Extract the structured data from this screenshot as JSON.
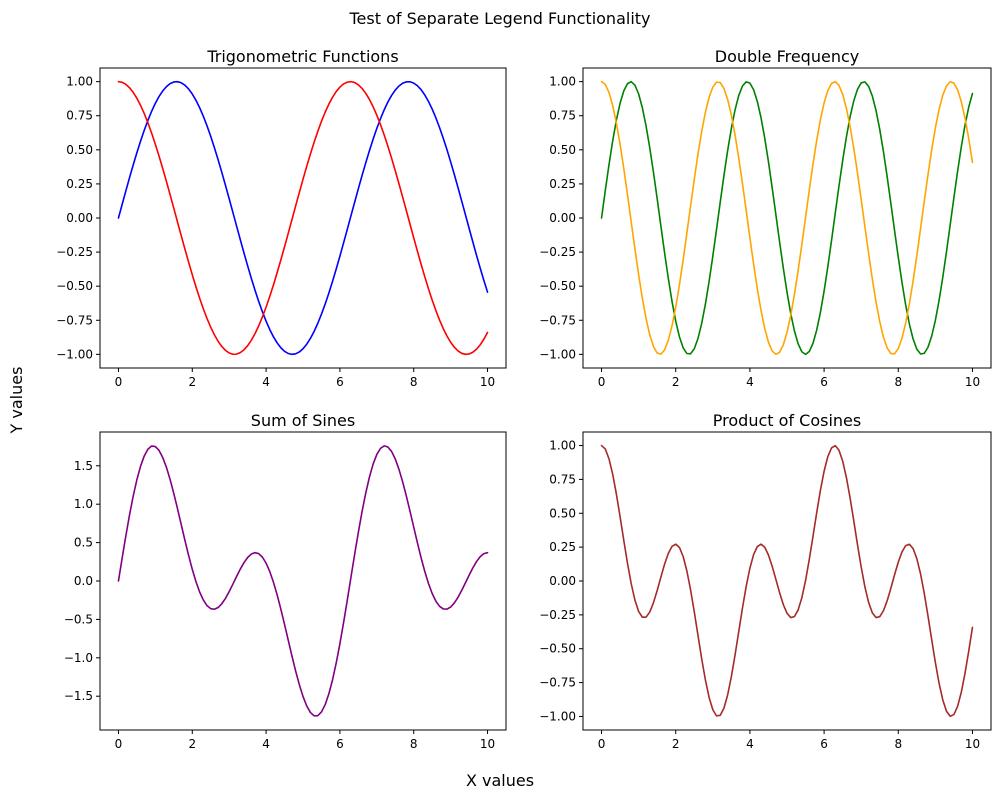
{
  "figure": {
    "suptitle": "Test of Separate Legend Functionality",
    "supxlabel": "X values",
    "supylabel": "Y values"
  },
  "chart_data": [
    {
      "type": "line",
      "title": "Trigonometric Functions",
      "xlim": [
        -0.5,
        10.5
      ],
      "ylim": [
        -1.1,
        1.1
      ],
      "xticks": [
        0,
        2,
        4,
        6,
        8,
        10
      ],
      "xtick_labels": [
        "0",
        "2",
        "4",
        "6",
        "8",
        "10"
      ],
      "yticks": [
        -1.0,
        -0.75,
        -0.5,
        -0.25,
        0.0,
        0.25,
        0.5,
        0.75,
        1.0
      ],
      "ytick_labels": [
        "−1.00",
        "−0.75",
        "−0.50",
        "−0.25",
        "0.00",
        "0.25",
        "0.50",
        "0.75",
        "1.00"
      ],
      "grid": false,
      "series": [
        {
          "expr": "sin(x)",
          "color": "#0000ff"
        },
        {
          "expr": "cos(x)",
          "color": "#ff0000"
        }
      ]
    },
    {
      "type": "line",
      "title": "Double Frequency",
      "xlim": [
        -0.5,
        10.5
      ],
      "ylim": [
        -1.1,
        1.1
      ],
      "xticks": [
        0,
        2,
        4,
        6,
        8,
        10
      ],
      "xtick_labels": [
        "0",
        "2",
        "4",
        "6",
        "8",
        "10"
      ],
      "yticks": [
        -1.0,
        -0.75,
        -0.5,
        -0.25,
        0.0,
        0.25,
        0.5,
        0.75,
        1.0
      ],
      "ytick_labels": [
        "−1.00",
        "−0.75",
        "−0.50",
        "−0.25",
        "0.00",
        "0.25",
        "0.50",
        "0.75",
        "1.00"
      ],
      "grid": false,
      "series": [
        {
          "expr": "sin(2x)",
          "color": "#008000"
        },
        {
          "expr": "cos(2x)",
          "color": "#ffa500"
        }
      ]
    },
    {
      "type": "line",
      "title": "Sum of Sines",
      "xlim": [
        -0.5,
        10.5
      ],
      "ylim": [
        -1.94,
        1.94
      ],
      "xticks": [
        0,
        2,
        4,
        6,
        8,
        10
      ],
      "xtick_labels": [
        "0",
        "2",
        "4",
        "6",
        "8",
        "10"
      ],
      "yticks": [
        -1.5,
        -1.0,
        -0.5,
        0.0,
        0.5,
        1.0,
        1.5
      ],
      "ytick_labels": [
        "−1.5",
        "−1.0",
        "−0.5",
        "0.0",
        "0.5",
        "1.0",
        "1.5"
      ],
      "grid": false,
      "series": [
        {
          "expr": "sin(x) + sin(2x)",
          "color": "#800080"
        }
      ]
    },
    {
      "type": "line",
      "title": "Product of Cosines",
      "xlim": [
        -0.5,
        10.5
      ],
      "ylim": [
        -1.1,
        1.1
      ],
      "xticks": [
        0,
        2,
        4,
        6,
        8,
        10
      ],
      "xtick_labels": [
        "0",
        "2",
        "4",
        "6",
        "8",
        "10"
      ],
      "yticks": [
        -1.0,
        -0.75,
        -0.5,
        -0.25,
        0.0,
        0.25,
        0.5,
        0.75,
        1.0
      ],
      "ytick_labels": [
        "−1.00",
        "−0.75",
        "−0.50",
        "−0.25",
        "0.00",
        "0.25",
        "0.50",
        "0.75",
        "1.00"
      ],
      "grid": false,
      "series": [
        {
          "expr": "cos(x) * cos(2x)",
          "color": "#a52a2a"
        }
      ]
    }
  ]
}
